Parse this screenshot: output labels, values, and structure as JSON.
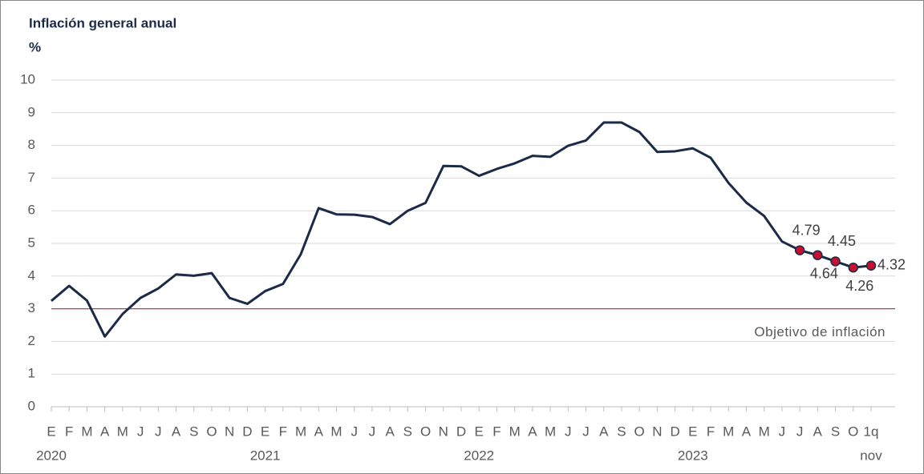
{
  "chart_data": {
    "type": "line",
    "title": "Inflación general anual",
    "y_label": "%",
    "categories": [
      "E",
      "F",
      "M",
      "A",
      "M",
      "J",
      "J",
      "A",
      "S",
      "O",
      "N",
      "D",
      "E",
      "F",
      "M",
      "A",
      "M",
      "J",
      "J",
      "A",
      "S",
      "O",
      "N",
      "D",
      "E",
      "F",
      "M",
      "A",
      "M",
      "J",
      "J",
      "A",
      "S",
      "O",
      "N",
      "D",
      "E",
      "F",
      "M",
      "A",
      "M",
      "J",
      "J",
      "A",
      "S",
      "O",
      "1q"
    ],
    "category_sublabels": [
      "2020",
      null,
      null,
      null,
      null,
      null,
      null,
      null,
      null,
      null,
      null,
      null,
      "2021",
      null,
      null,
      null,
      null,
      null,
      null,
      null,
      null,
      null,
      null,
      null,
      "2022",
      null,
      null,
      null,
      null,
      null,
      null,
      null,
      null,
      null,
      null,
      null,
      "2023",
      null,
      null,
      null,
      null,
      null,
      null,
      null,
      null,
      null,
      "nov"
    ],
    "series": [
      {
        "name": "Inflación general anual",
        "color": "#1b2a47",
        "values": [
          3.24,
          3.7,
          3.25,
          2.15,
          2.84,
          3.33,
          3.62,
          4.05,
          4.01,
          4.09,
          3.33,
          3.15,
          3.54,
          3.76,
          4.67,
          6.08,
          5.89,
          5.88,
          5.81,
          5.59,
          6.0,
          6.24,
          7.37,
          7.36,
          7.07,
          7.28,
          7.45,
          7.68,
          7.65,
          7.99,
          8.15,
          8.7,
          8.7,
          8.41,
          7.8,
          7.82,
          7.91,
          7.62,
          6.85,
          6.25,
          5.84,
          5.06,
          4.79,
          4.64,
          4.45,
          4.26,
          4.32
        ]
      }
    ],
    "markers": {
      "color": "#c8102e",
      "count": 5
    },
    "reference": {
      "value": 3,
      "label": "Objetivo de inflación",
      "color": "#c0395a"
    },
    "ylim": [
      0,
      10
    ],
    "yticks": [
      0,
      1,
      2,
      3,
      4,
      5,
      6,
      7,
      8,
      9,
      10
    ],
    "grid": true
  }
}
